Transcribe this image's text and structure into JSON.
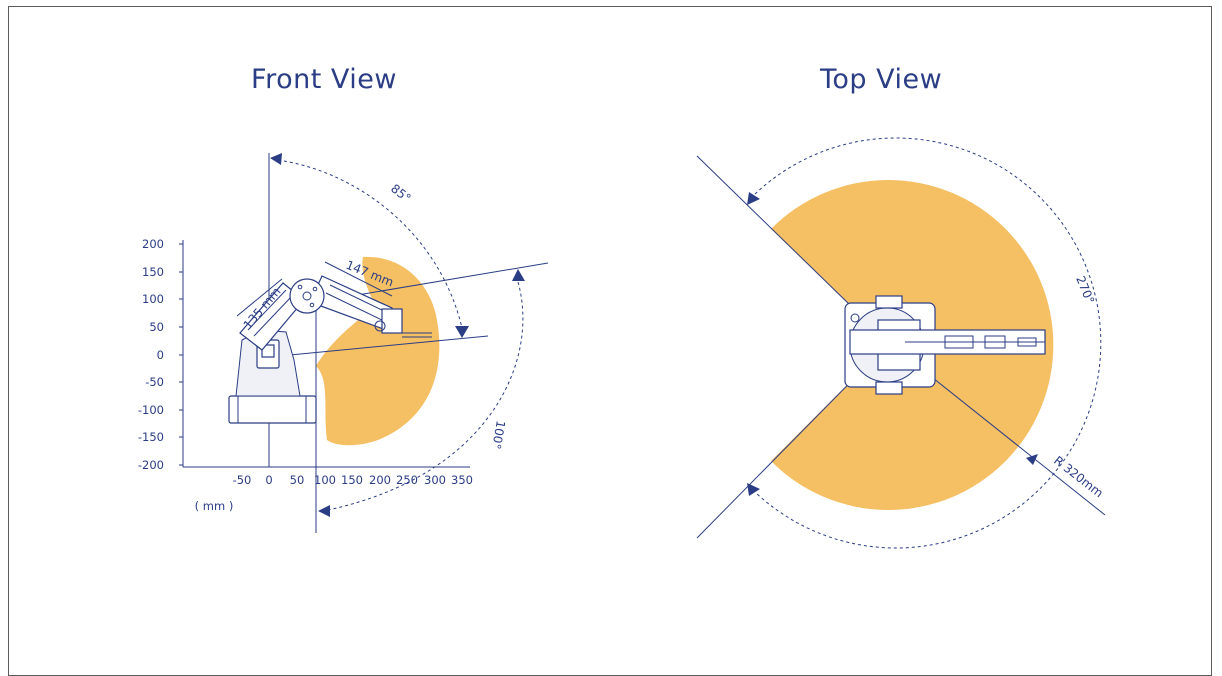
{
  "front_view": {
    "title": "Front View",
    "y_ticks": [
      "200",
      "150",
      "100",
      "50",
      "0",
      "-50",
      "-100",
      "-150",
      "-200"
    ],
    "x_ticks": [
      "-50",
      "0",
      "50",
      "100",
      "150",
      "200",
      "250",
      "300",
      "350"
    ],
    "unit_label": "( mm )",
    "upper_arm_length": "135 mm",
    "forearm_length": "147 mm",
    "upper_angle": "85°",
    "lower_angle": "100°"
  },
  "top_view": {
    "title": "Top View",
    "sweep_angle": "270°",
    "radius": "R 320mm"
  },
  "colors": {
    "workspace": "#f5bf63",
    "line": "#2b3d85"
  }
}
